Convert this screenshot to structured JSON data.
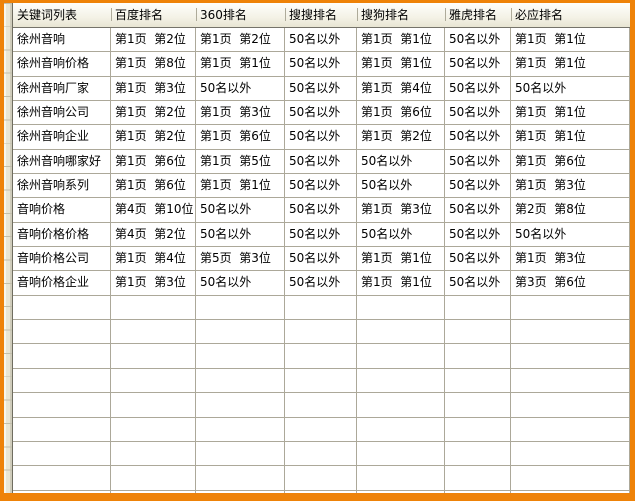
{
  "table": {
    "columns": [
      "关键词列表",
      "百度排名",
      "360排名",
      "搜搜排名",
      "搜狗排名",
      "雅虎排名",
      "必应排名"
    ],
    "rows": [
      [
        "徐州音响",
        "第1页  第2位",
        "第1页  第2位",
        "50名以外",
        "第1页  第1位",
        "50名以外",
        "第1页  第1位"
      ],
      [
        "徐州音响价格",
        "第1页  第8位",
        "第1页  第1位",
        "50名以外",
        "第1页  第1位",
        "50名以外",
        "第1页  第1位"
      ],
      [
        "徐州音响厂家",
        "第1页  第3位",
        "50名以外",
        "50名以外",
        "第1页  第4位",
        "50名以外",
        "50名以外"
      ],
      [
        "徐州音响公司",
        "第1页  第2位",
        "第1页  第3位",
        "50名以外",
        "第1页  第6位",
        "50名以外",
        "第1页  第1位"
      ],
      [
        "徐州音响企业",
        "第1页  第2位",
        "第1页  第6位",
        "50名以外",
        "第1页  第2位",
        "50名以外",
        "第1页  第1位"
      ],
      [
        "徐州音响哪家好",
        "第1页  第6位",
        "第1页  第5位",
        "50名以外",
        "50名以外",
        "50名以外",
        "第1页  第6位"
      ],
      [
        "徐州音响系列",
        "第1页  第6位",
        "第1页  第1位",
        "50名以外",
        "50名以外",
        "50名以外",
        "第1页  第3位"
      ],
      [
        "音响价格",
        "第4页  第10位",
        "50名以外",
        "50名以外",
        "第1页  第3位",
        "50名以外",
        "第2页  第8位"
      ],
      [
        "音响价格价格",
        "第4页  第2位",
        "50名以外",
        "50名以外",
        "50名以外",
        "50名以外",
        "50名以外"
      ],
      [
        "音响价格公司",
        "第1页  第4位",
        "第5页  第3位",
        "50名以外",
        "第1页  第1位",
        "50名以外",
        "第1页  第3位"
      ],
      [
        "音响价格企业",
        "第1页  第3位",
        "50名以外",
        "50名以外",
        "第1页  第1位",
        "50名以外",
        "第3页  第6位"
      ]
    ],
    "empty_row_count": 9
  },
  "colors": {
    "frame_orange": "#EE8208",
    "grid_line": "#ACA899",
    "header_bg_top": "#FEFEFC",
    "header_bg_bottom": "#E8E5D3",
    "strip_bg": "#E9E6D5",
    "text": "#000000"
  }
}
